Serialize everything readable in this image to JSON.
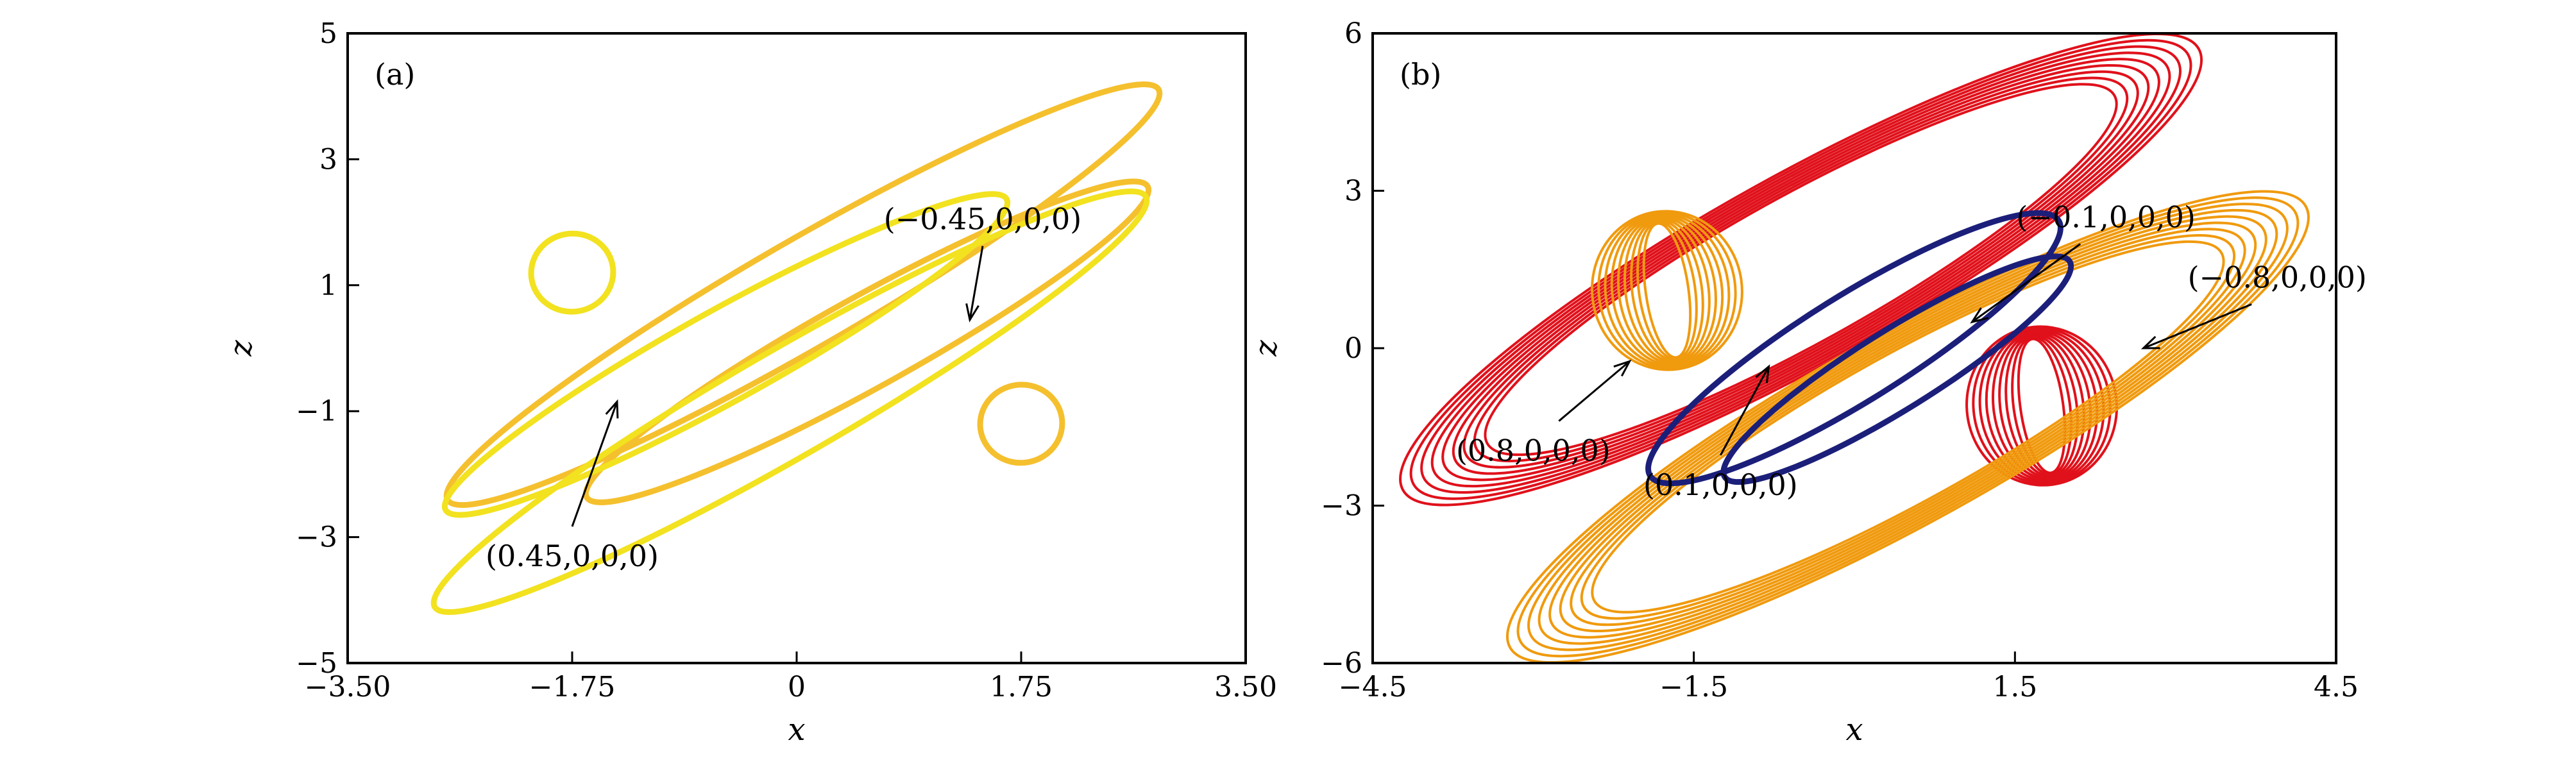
{
  "chart_data": [
    {
      "type": "line",
      "panel_label": "(a)",
      "xlabel": "x",
      "ylabel": "z",
      "xlim": [
        -3.5,
        3.5
      ],
      "ylim": [
        -5,
        5
      ],
      "xticks": [
        -3.5,
        -1.75,
        0,
        1.75,
        3.5
      ],
      "xtick_labels": [
        "−3.50",
        "−1.75",
        "0",
        "1.75",
        "3.50"
      ],
      "yticks": [
        -5,
        -3,
        -1,
        1,
        3,
        5
      ],
      "ytick_labels": [
        "−5",
        "−3",
        "−1",
        "1",
        "3",
        "5"
      ],
      "grid": false,
      "series": [
        {
          "color": "#F5C02E",
          "orbits": [
            {
              "cx": 0.05,
              "cz": 0.85,
              "a": 3.2,
              "b": 0.85,
              "angle": -30
            },
            {
              "cx": 0.55,
              "cz": 0.1,
              "a": 2.5,
              "b": 0.72,
              "angle": -29
            },
            {
              "cx": 1.75,
              "cz": -1.2,
              "a": 0.32,
              "b": 0.62,
              "angle": -8
            }
          ]
        },
        {
          "color": "#F2E21F",
          "orbits": [
            {
              "cx": -0.05,
              "cz": -0.85,
              "a": 3.2,
              "b": 0.85,
              "angle": -30
            },
            {
              "cx": -0.55,
              "cz": -0.1,
              "a": 2.5,
              "b": 0.72,
              "angle": -29
            },
            {
              "cx": -1.75,
              "cz": 1.2,
              "a": 0.32,
              "b": 0.62,
              "angle": -8
            }
          ]
        }
      ],
      "annotations": [
        {
          "text": "(−0.45,0,0,0)",
          "tx": 1.45,
          "tz": 2.05,
          "ax": 1.35,
          "az": 0.45
        },
        {
          "text": "(0.45,0,0,0)",
          "tx": -1.75,
          "tz": -3.3,
          "ax": -1.4,
          "az": -0.85
        }
      ]
    },
    {
      "type": "line",
      "panel_label": "(b)",
      "xlabel": "x",
      "ylabel": "z",
      "xlim": [
        -4.5,
        4.5
      ],
      "ylim": [
        -6,
        6
      ],
      "xticks": [
        -4.5,
        -1.5,
        1.5,
        4.5
      ],
      "xtick_labels": [
        "−4.5",
        "−1.5",
        "1.5",
        "4.5"
      ],
      "yticks": [
        -6,
        -3,
        0,
        3,
        6
      ],
      "ytick_labels": [
        "−6",
        "−3",
        "0",
        "3",
        "6"
      ],
      "grid": false,
      "series": [
        {
          "color": "#E0111B",
          "orbits": [
            {
              "cx": -0.5,
              "cz": 1.5,
              "a": 3.8,
              "b": 1.6,
              "angle": -29,
              "band": 0.45
            },
            {
              "cx": 1.75,
              "cz": -1.1,
              "a": 0.45,
              "b": 1.4,
              "angle": -8,
              "band": 0.25
            }
          ]
        },
        {
          "color": "#F09A0E",
          "orbits": [
            {
              "cx": 0.5,
              "cz": -1.5,
              "a": 3.8,
              "b": 1.6,
              "angle": -29,
              "band": 0.45
            },
            {
              "cx": -1.75,
              "cz": 1.1,
              "a": 0.45,
              "b": 1.4,
              "angle": -8,
              "band": 0.25
            }
          ]
        },
        {
          "color": "#1B1F7A",
          "orbits": [
            {
              "cx": 0.0,
              "cz": 0.0,
              "a": 2.25,
              "b": 1.0,
              "angle": -32
            },
            {
              "cx": 0.4,
              "cz": -0.4,
              "a": 1.9,
              "b": 0.75,
              "angle": -32
            }
          ]
        }
      ],
      "annotations": [
        {
          "text": "(−0.1,0,0,0)",
          "tx": 2.35,
          "tz": 2.5,
          "ax": 1.1,
          "az": 0.5
        },
        {
          "text": "(−0.8,0,0,0)",
          "tx": 3.95,
          "tz": 1.35,
          "ax": 2.7,
          "az": 0.0
        },
        {
          "text": "(0.8,0,0,0)",
          "tx": -3.0,
          "tz": -1.95,
          "ax": -2.1,
          "az": -0.25
        },
        {
          "text": "(0.1,0,0,0)",
          "tx": -1.25,
          "tz": -2.6,
          "ax": -0.8,
          "az": -0.35
        }
      ]
    }
  ]
}
